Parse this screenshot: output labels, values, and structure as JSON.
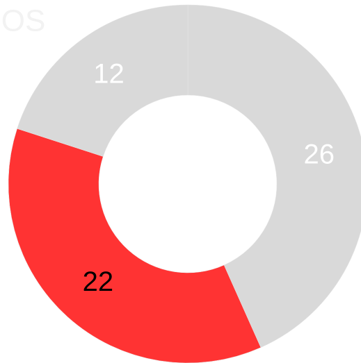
{
  "chart_data": {
    "type": "donut",
    "title": "HOS",
    "categories": [
      null,
      null,
      null
    ],
    "values": [
      26,
      22,
      12
    ],
    "colors": [
      "#d9d9d9",
      "#ff3333",
      "#d9d9d9"
    ],
    "label_colors": [
      "#ffffff",
      "#000000",
      "#ffffff"
    ]
  }
}
